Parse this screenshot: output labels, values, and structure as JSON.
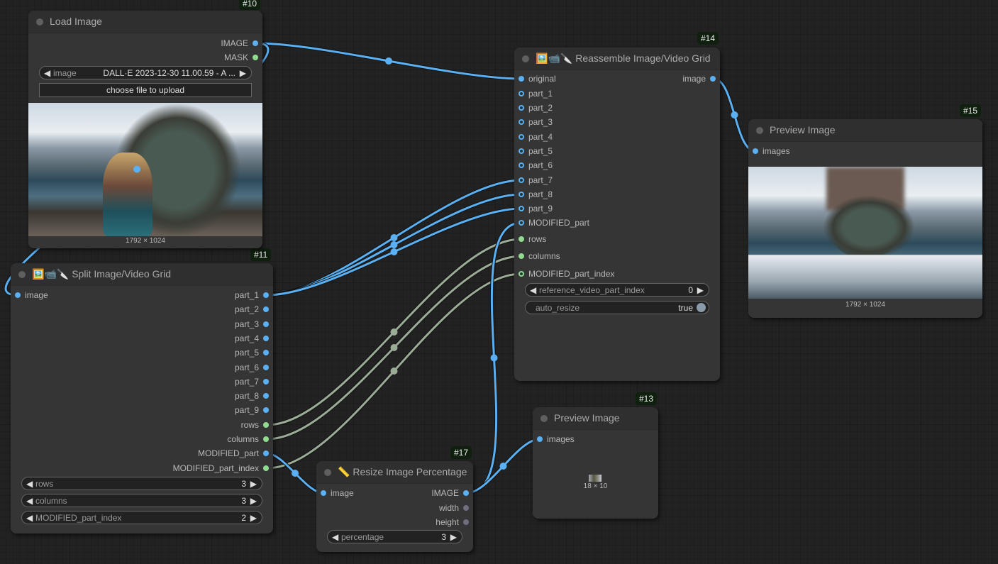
{
  "colors": {
    "image_link": "#5ab0f2",
    "int_link": "#9aab96",
    "mask_pin": "#8fdb8f",
    "int_pin": "#8fdb8f",
    "node_bg": "#353535",
    "badge_bg": "#0f200f"
  },
  "nodes": {
    "load_image": {
      "id": "#10",
      "title": "Load Image",
      "outputs": [
        "IMAGE",
        "MASK"
      ],
      "image_widget": {
        "label": "image",
        "value": "DALL·E 2023-12-30 11.00.59 - A ..."
      },
      "upload_button": "choose file to upload",
      "image_size": "1792 × 1024"
    },
    "split": {
      "id": "#11",
      "title": "Split Image/Video Grid",
      "icons": [
        "picture-icon",
        "video-camera-icon",
        "knife-icon"
      ],
      "inputs": [
        "image"
      ],
      "outputs": [
        "part_1",
        "part_2",
        "part_3",
        "part_4",
        "part_5",
        "part_6",
        "part_7",
        "part_8",
        "part_9",
        "rows",
        "columns",
        "MODIFIED_part",
        "MODIFIED_part_index"
      ],
      "widgets": [
        {
          "label": "rows",
          "value": "3"
        },
        {
          "label": "columns",
          "value": "3"
        },
        {
          "label": "MODIFIED_part_index",
          "value": "2"
        }
      ]
    },
    "reassemble": {
      "id": "#14",
      "title": "Reassemble Image/Video Grid",
      "icons": [
        "picture-icon",
        "video-camera-icon",
        "knife-icon"
      ],
      "inputs": [
        "original",
        "part_1",
        "part_2",
        "part_3",
        "part_4",
        "part_5",
        "part_6",
        "part_7",
        "part_8",
        "part_9",
        "MODIFIED_part",
        "rows",
        "columns",
        "MODIFIED_part_index"
      ],
      "outputs": [
        "image"
      ],
      "widgets": [
        {
          "label": "reference_video_part_index",
          "value": "0"
        }
      ],
      "toggle": {
        "label": "auto_resize",
        "value": "true",
        "on": true
      }
    },
    "preview15": {
      "id": "#15",
      "title": "Preview Image",
      "inputs": [
        "images"
      ],
      "image_size": "1792 × 1024"
    },
    "preview13": {
      "id": "#13",
      "title": "Preview Image",
      "inputs": [
        "images"
      ],
      "image_size": "18 × 10"
    },
    "resize": {
      "id": "#17",
      "title": "Resize Image Percentage",
      "icons": [
        "ruler-icon"
      ],
      "inputs": [
        "image"
      ],
      "outputs": [
        "IMAGE",
        "width",
        "height"
      ],
      "widgets": [
        {
          "label": "percentage",
          "value": "3"
        }
      ]
    }
  }
}
